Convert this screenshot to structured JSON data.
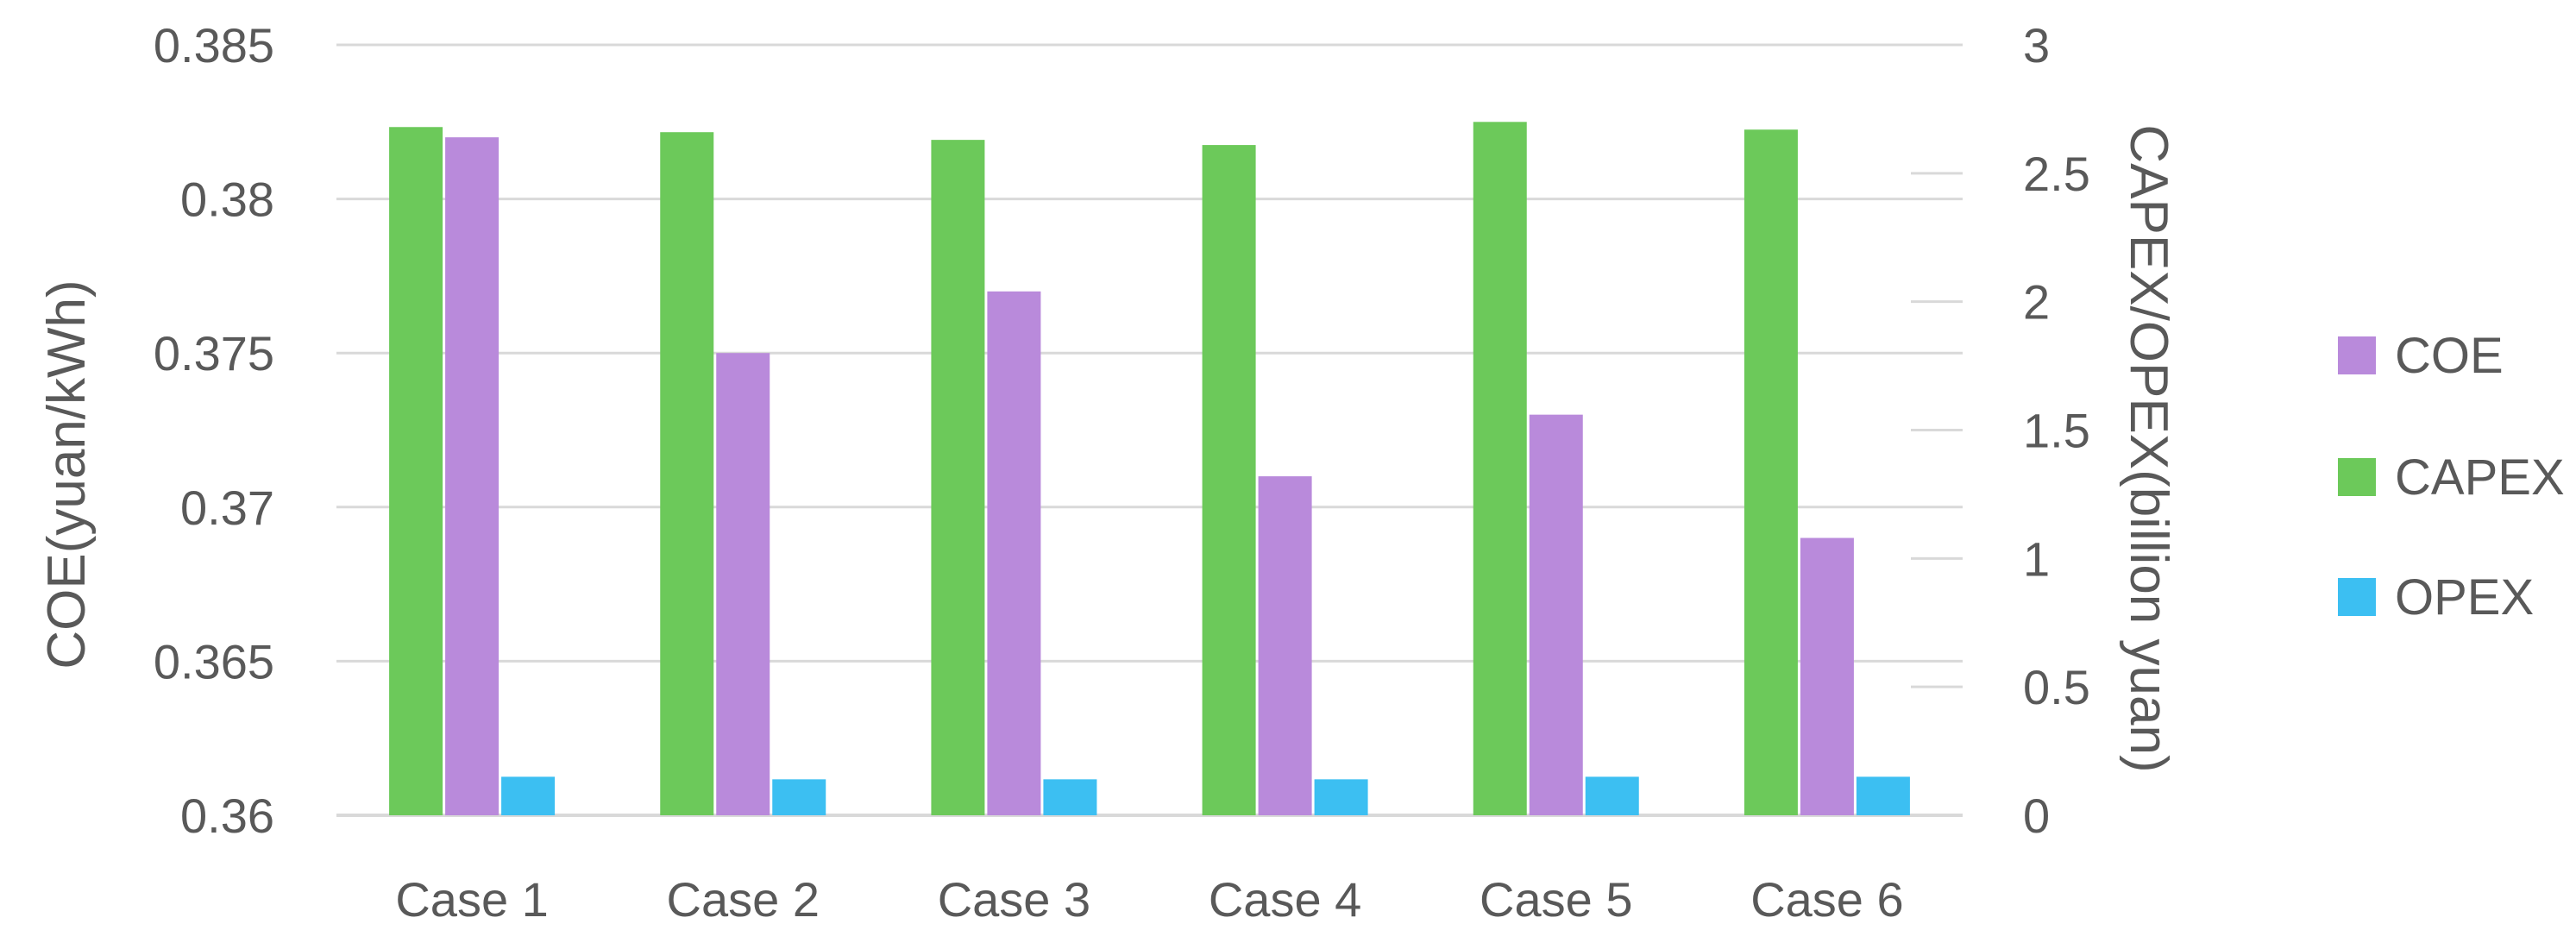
{
  "chart_data": {
    "type": "bar",
    "categories": [
      "Case 1",
      "Case 2",
      "Case 3",
      "Case 4",
      "Case 5",
      "Case 6"
    ],
    "series": [
      {
        "name": "CAPEX",
        "axis": "right",
        "color": "#6cc95a",
        "values": [
          2.68,
          2.66,
          2.63,
          2.61,
          2.7,
          2.67
        ]
      },
      {
        "name": "COE",
        "axis": "left",
        "color": "#b98adb",
        "values": [
          0.382,
          0.375,
          0.377,
          0.371,
          0.373,
          0.369
        ]
      },
      {
        "name": "OPEX",
        "axis": "right",
        "color": "#3cbff2",
        "values": [
          0.15,
          0.14,
          0.14,
          0.14,
          0.15,
          0.15
        ]
      }
    ],
    "legend_order": [
      "COE",
      "CAPEX",
      "OPEX"
    ],
    "legend_position": "right",
    "ylabel": "COE(yuan/kWh)",
    "ylabel_right": "CAPEX/OPEX(billion yuan)",
    "ylim": [
      0.36,
      0.385
    ],
    "ylim_right": [
      0,
      3
    ],
    "yticks": [
      "0.36",
      "0.365",
      "0.37",
      "0.375",
      "0.38",
      "0.385"
    ],
    "yticks_right": [
      "0",
      "0.5",
      "1",
      "1.5",
      "2",
      "2.5",
      "3"
    ],
    "grid": true,
    "gridline_color": "#d9d9d9"
  }
}
